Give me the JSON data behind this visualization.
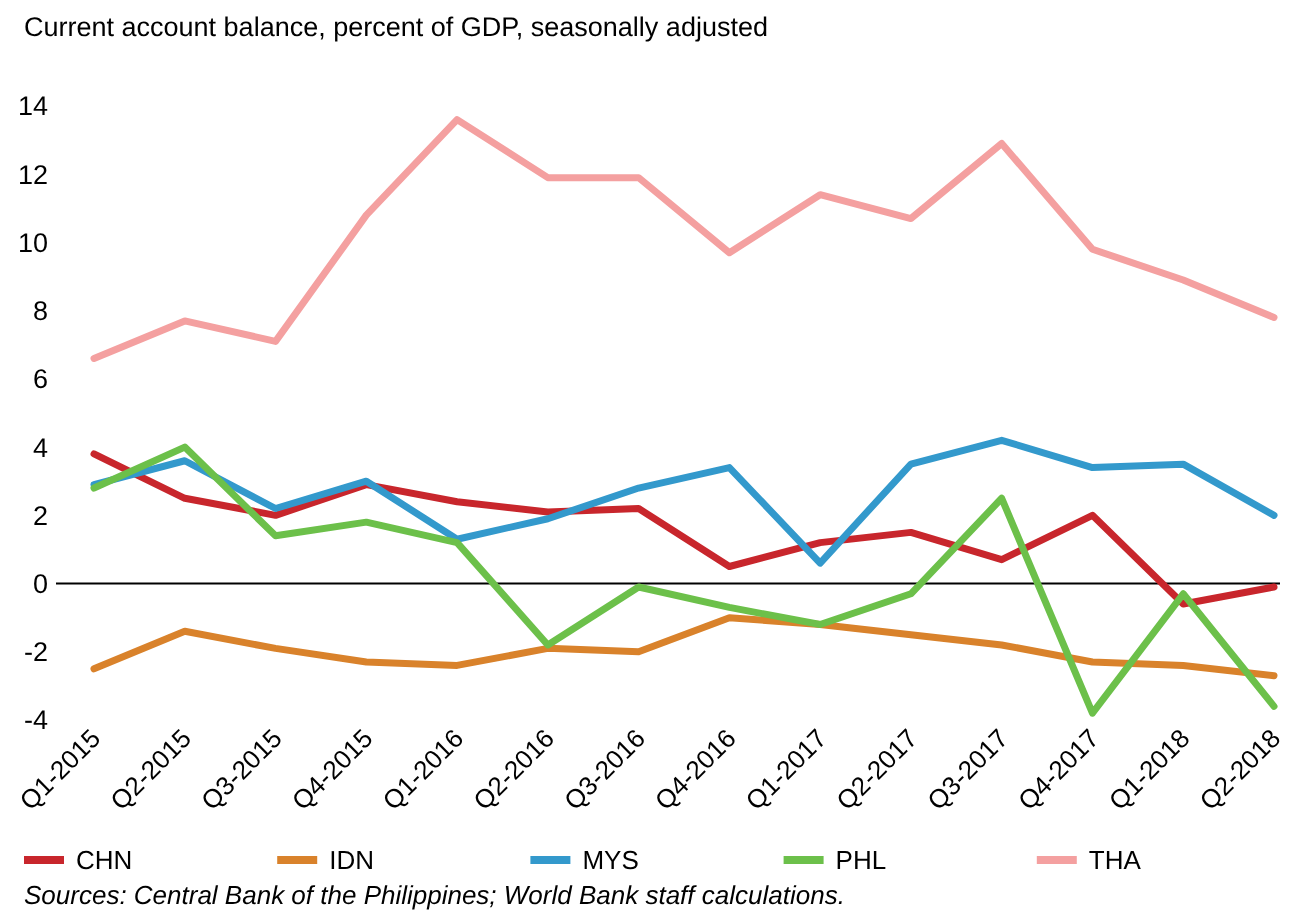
{
  "chart_data": {
    "type": "line",
    "title": "Current account balance, percent of GDP, seasonally adjusted",
    "categories": [
      "Q1-2015",
      "Q2-2015",
      "Q3-2015",
      "Q4-2015",
      "Q1-2016",
      "Q2-2016",
      "Q3-2016",
      "Q4-2016",
      "Q1-2017",
      "Q2-2017",
      "Q3-2017",
      "Q4-2017",
      "Q1-2018",
      "Q2-2018"
    ],
    "series": [
      {
        "name": "CHN",
        "color": "#c8262c",
        "values": [
          3.8,
          2.5,
          2.0,
          2.9,
          2.4,
          2.1,
          2.2,
          0.5,
          1.2,
          1.5,
          0.7,
          2.0,
          -0.6,
          -0.1
        ]
      },
      {
        "name": "IDN",
        "color": "#d9822b",
        "values": [
          -2.5,
          -1.4,
          -1.9,
          -2.3,
          -2.4,
          -1.9,
          -2.0,
          -1.0,
          -1.2,
          -1.5,
          -1.8,
          -2.3,
          -2.4,
          -2.7
        ]
      },
      {
        "name": "MYS",
        "color": "#3399cc",
        "values": [
          2.9,
          3.6,
          2.2,
          3.0,
          1.3,
          1.9,
          2.8,
          3.4,
          0.6,
          3.5,
          4.2,
          3.4,
          3.5,
          2.0
        ]
      },
      {
        "name": "PHL",
        "color": "#6cc04a",
        "values": [
          2.8,
          4.0,
          1.4,
          1.8,
          1.2,
          -1.8,
          -0.1,
          -0.7,
          -1.2,
          -0.3,
          2.5,
          -3.8,
          -0.3,
          -3.6
        ]
      },
      {
        "name": "THA",
        "color": "#f4a0a0",
        "values": [
          6.6,
          7.7,
          7.1,
          10.8,
          13.6,
          11.9,
          11.9,
          9.7,
          11.4,
          10.7,
          12.9,
          9.8,
          8.9,
          7.8
        ]
      }
    ],
    "ylim": [
      -4,
      14
    ],
    "yticks": [
      -4,
      -2,
      0,
      2,
      4,
      6,
      8,
      10,
      12,
      14
    ],
    "ref_lines": [
      {
        "axis": "y",
        "value": 0,
        "color": "#000000"
      }
    ],
    "legend": "bottom",
    "marker": "none",
    "line_style": "solid",
    "grid": false,
    "annotations": [
      "Sources: Central Bank of the Philippines; World Bank staff calculations."
    ]
  }
}
